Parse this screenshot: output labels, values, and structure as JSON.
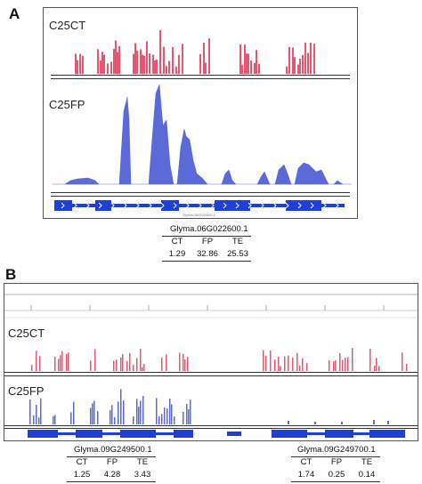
{
  "panels": {
    "a": {
      "letter": "A",
      "ct_label": "C25CT",
      "fp_label": "C25FP",
      "gene_label": "Glyma.06G022600.1",
      "table": {
        "gene": "Glyma.06G022600.1",
        "headers": [
          "CT",
          "FP",
          "TE"
        ],
        "values": [
          "1.29",
          "32.86",
          "25.53"
        ]
      }
    },
    "b": {
      "letter": "B",
      "ct_label": "C25CT",
      "fp_label": "C25FP",
      "table_left": {
        "gene": "Glyma.09G249500.1",
        "headers": [
          "CT",
          "FP",
          "TE"
        ],
        "values": [
          "1.25",
          "4.28",
          "3.43"
        ]
      },
      "table_right": {
        "gene": "Glyma.09G249700.1",
        "headers": [
          "CT",
          "FP",
          "TE"
        ],
        "values": [
          "1.74",
          "0.25",
          "0.14"
        ]
      }
    }
  },
  "colors": {
    "ct_track": "#e8556f",
    "fp_track": "#5b6ad6",
    "gene_model": "#1f3fd6"
  }
}
